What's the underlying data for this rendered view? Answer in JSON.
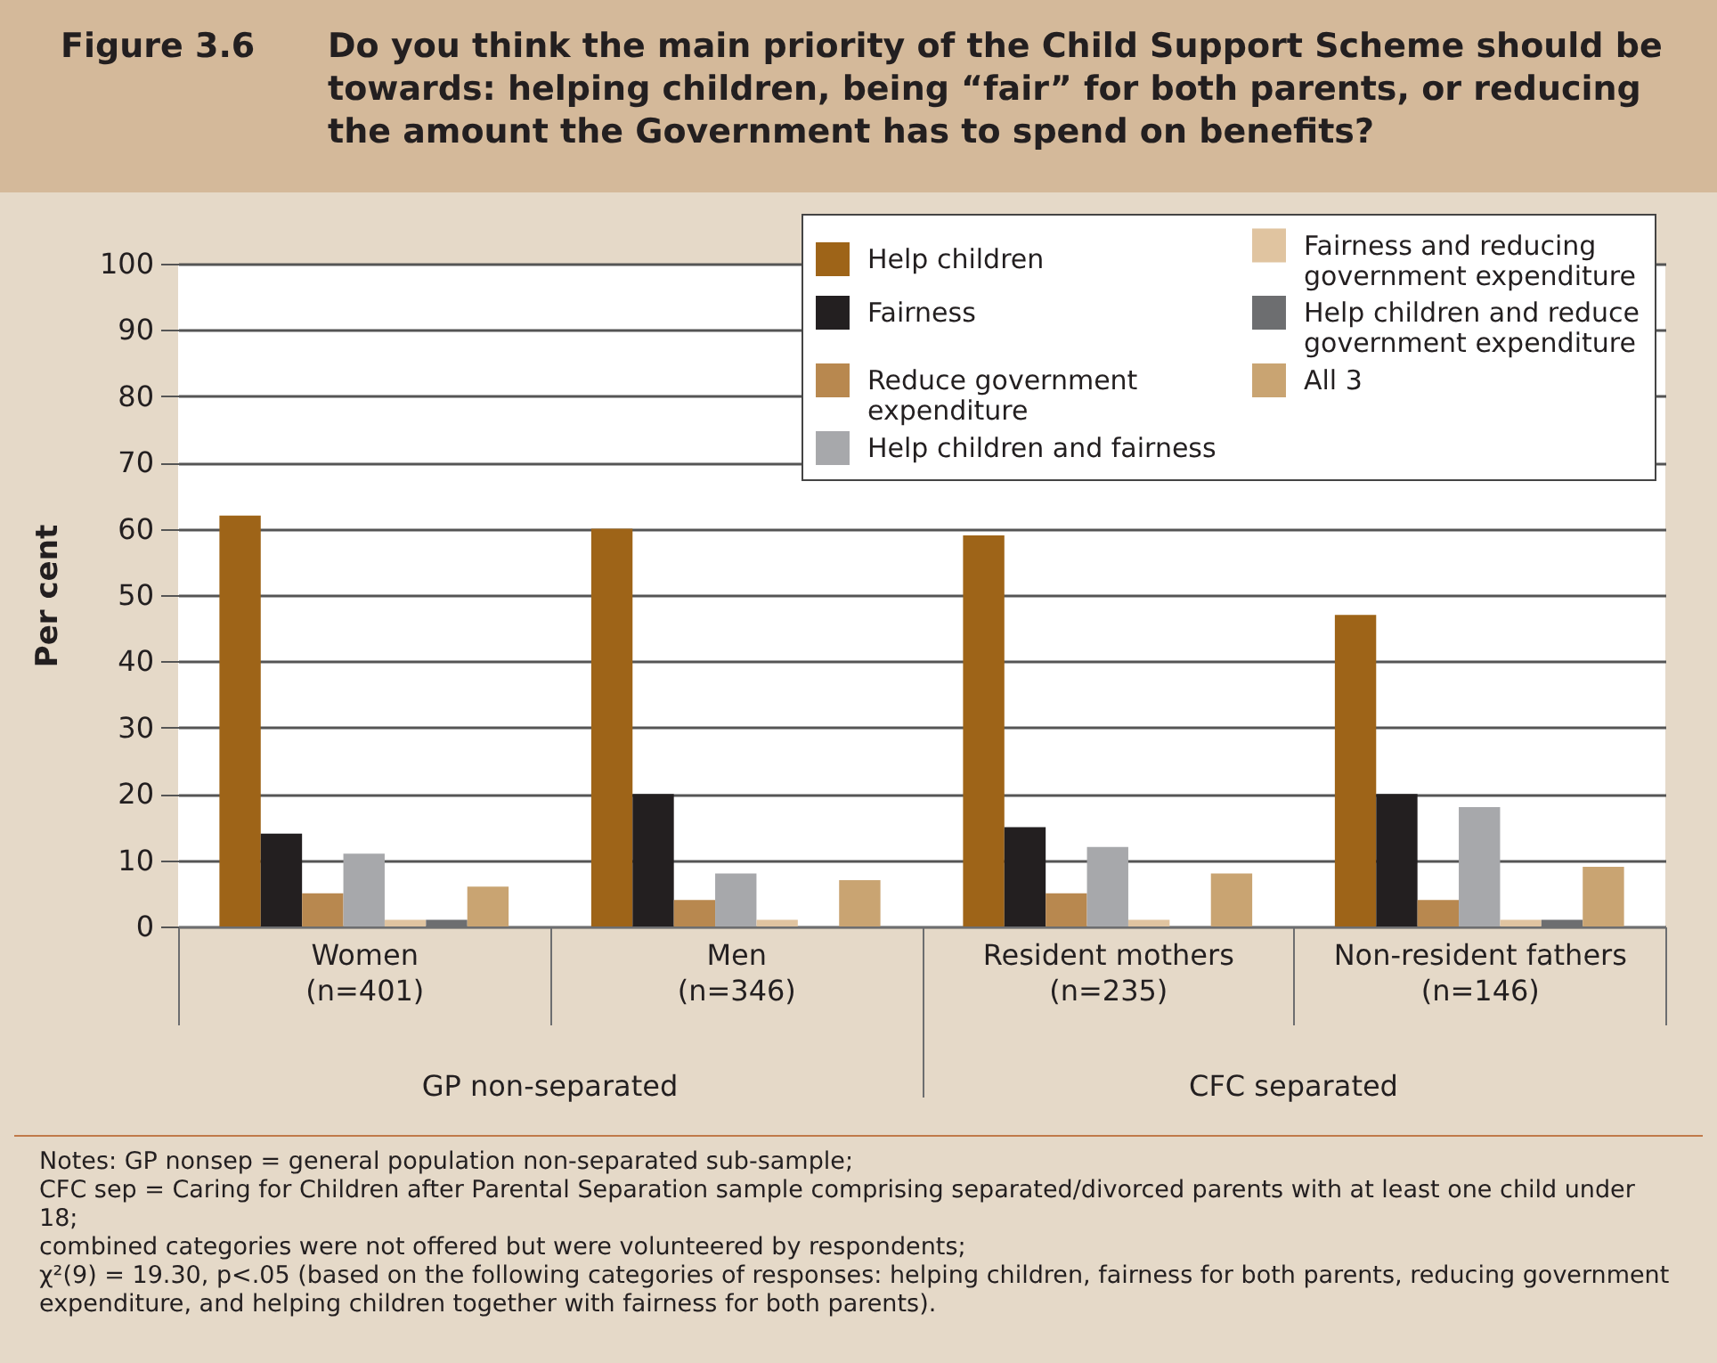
{
  "chart_data": {
    "type": "bar",
    "title": "Figure 3.6",
    "subtitle": "Do you think the main priority of the Child Support Scheme should be towards: helping children, being “fair” for both parents, or reducing the amount the Government has to spend on benefits?",
    "ylabel": "Per cent",
    "categories": [
      "Women (n=401)",
      "Men (n=346)",
      "Resident mothers (n=235)",
      "Non-resident fathers (n=146)"
    ],
    "series": [
      {
        "name": "Help children",
        "color": "#9e6418",
        "values": [
          62,
          60,
          59,
          47
        ]
      },
      {
        "name": "Fairness",
        "color": "#231f20",
        "values": [
          14,
          20,
          15,
          20
        ]
      },
      {
        "name": "Reduce government expenditure",
        "color": "#b8884f",
        "values": [
          5,
          4,
          5,
          4
        ]
      },
      {
        "name": "Help children and fairness",
        "color": "#a7a8ab",
        "values": [
          11,
          8,
          12,
          18
        ]
      },
      {
        "name": "Fairness and reducing government expenditure",
        "color": "#e0c4a0",
        "values": [
          1,
          1,
          1,
          1
        ]
      },
      {
        "name": "Help children and reduce government expenditure",
        "color": "#6d6e70",
        "values": [
          1,
          0,
          0,
          1
        ]
      },
      {
        "name": "All 3",
        "color": "#c9a472",
        "values": [
          6,
          7,
          8,
          9
        ]
      }
    ],
    "ylim": [
      0,
      100
    ],
    "yticks": [
      0,
      10,
      20,
      30,
      40,
      50,
      60,
      70,
      80,
      90,
      100
    ],
    "grid": "y",
    "legend": "top right",
    "annotations": [
      "GP non-separated",
      "CFC separated",
      "Notes: GP nonsep = general population non-separated sub-sample;",
      "CFC sep = Caring for Children after Parental Separation sample comprising separated/divorced parents with at least one child under 18;",
      "combined categories were not offered but were volunteered by respondents;",
      "χ²(9) = 19.30, p<.05 (based on the following categories of responses: helping children, fairness for both parents, reducing government expenditure, and helping children together with fairness for both parents)."
    ]
  }
}
